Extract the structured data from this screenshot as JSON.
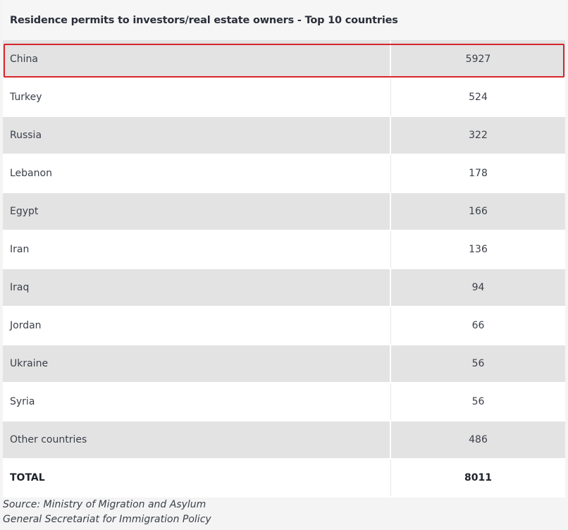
{
  "table": {
    "title": "Residence permits to investors/real estate owners - Top 10 countries",
    "rows": [
      {
        "country": "China",
        "value": "5927",
        "highlighted": true
      },
      {
        "country": "Turkey",
        "value": "524"
      },
      {
        "country": "Russia",
        "value": "322"
      },
      {
        "country": "Lebanon",
        "value": "178"
      },
      {
        "country": "Egypt",
        "value": "166"
      },
      {
        "country": "Iran",
        "value": "136"
      },
      {
        "country": "Iraq",
        "value": "94"
      },
      {
        "country": "Jordan",
        "value": "66"
      },
      {
        "country": "Ukraine",
        "value": "56"
      },
      {
        "country": "Syria",
        "value": "56"
      },
      {
        "country": "Other countries",
        "value": "486"
      }
    ],
    "total": {
      "label": "TOTAL",
      "value": "8011"
    }
  },
  "source": {
    "line1": "Source: Ministry of Migration and Asylum",
    "line2": "General Secretariat for Immigration Policy"
  },
  "colors": {
    "highlight": "#d9252b",
    "shaded_row": "#e3e3e3"
  }
}
